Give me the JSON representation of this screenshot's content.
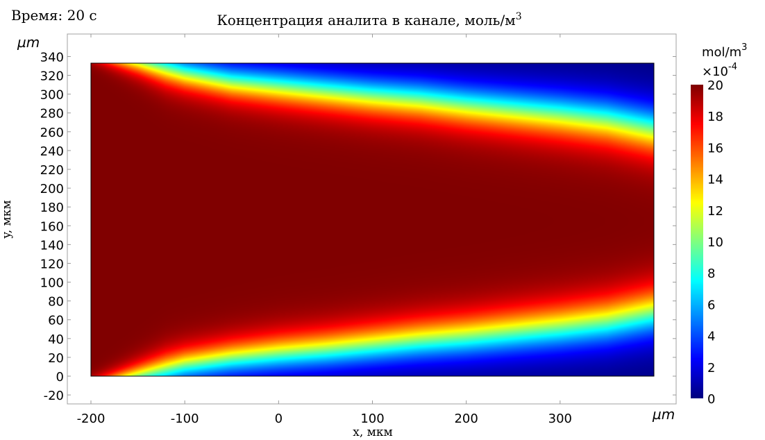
{
  "time_label": "Время: 20 с",
  "chart_data": {
    "type": "heatmap",
    "title": "Концентрация аналита в канале, моль/м",
    "title_superscript": "3",
    "xlabel": "x, мкм",
    "ylabel": "y, мкм",
    "x_unit": "µm",
    "y_unit": "µm",
    "xlim": [
      -225,
      425
    ],
    "ylim": [
      -30,
      355
    ],
    "x_ticks": [
      -200,
      -100,
      0,
      100,
      200,
      300
    ],
    "y_ticks": [
      -20,
      0,
      20,
      40,
      60,
      80,
      100,
      120,
      140,
      160,
      180,
      200,
      220,
      240,
      260,
      280,
      300,
      320,
      340
    ],
    "domain": {
      "x": [
        -200,
        400
      ],
      "y": [
        0,
        333
      ]
    },
    "colormap": "jet",
    "colorbar": {
      "unit": "mol/m",
      "unit_superscript": "3",
      "multiplier": "×10",
      "multiplier_exponent": "-4",
      "range": [
        0,
        20
      ],
      "ticks": [
        0,
        2,
        4,
        6,
        8,
        10,
        12,
        14,
        16,
        18,
        20
      ]
    },
    "max_value": 20,
    "upper_front": [
      [
        -200,
        345
      ],
      [
        -150,
        335
      ],
      [
        -100,
        322
      ],
      [
        -50,
        313
      ],
      [
        0,
        308
      ],
      [
        50,
        303
      ],
      [
        100,
        298
      ],
      [
        150,
        294
      ],
      [
        200,
        288
      ],
      [
        250,
        283
      ],
      [
        300,
        278
      ],
      [
        350,
        272
      ],
      [
        400,
        262
      ]
    ],
    "lower_front": [
      [
        -200,
        -12
      ],
      [
        -150,
        0
      ],
      [
        -100,
        12
      ],
      [
        -50,
        19
      ],
      [
        0,
        24
      ],
      [
        50,
        28
      ],
      [
        100,
        33
      ],
      [
        150,
        38
      ],
      [
        200,
        42
      ],
      [
        250,
        47
      ],
      [
        300,
        52
      ],
      [
        350,
        58
      ],
      [
        400,
        68
      ]
    ],
    "front_width": [
      [
        -200,
        4
      ],
      [
        -120,
        10
      ],
      [
        0,
        12
      ],
      [
        200,
        14
      ],
      [
        400,
        16
      ]
    ]
  }
}
